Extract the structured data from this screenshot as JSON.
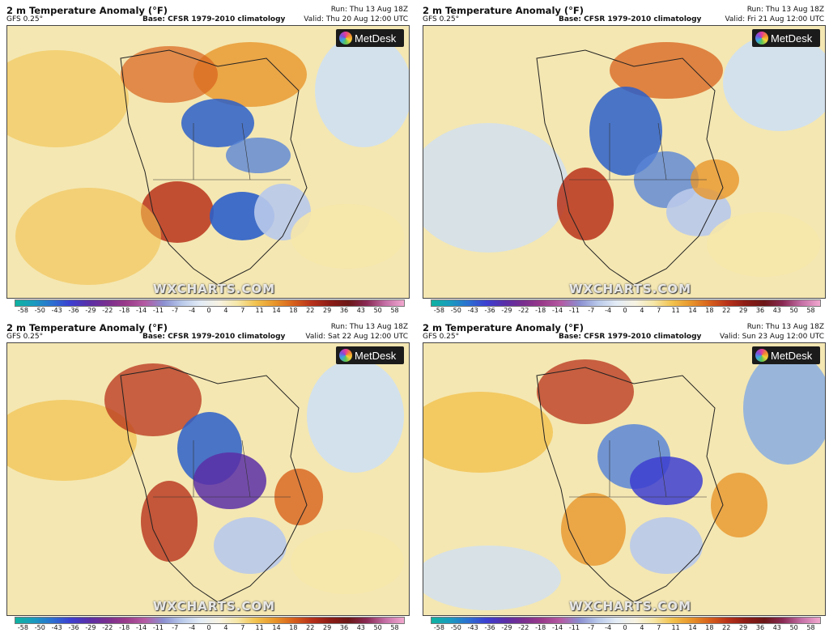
{
  "panels": [
    {
      "title": "2 m Temperature Anomaly (°F)",
      "model": "GFS 0.25°",
      "base": "Base: CFSR 1979-2010 climatology",
      "run": "Run: Thu 13 Aug 18Z",
      "valid": "Valid: Thu 20 Aug 12:00 UTC"
    },
    {
      "title": "2 m Temperature Anomaly (°F)",
      "model": "GFS 0.25°",
      "base": "Base: CFSR 1979-2010 climatology",
      "run": "Run: Thu 13 Aug 18Z",
      "valid": "Valid: Fri 21 Aug 12:00 UTC"
    },
    {
      "title": "2 m Temperature Anomaly (°F)",
      "model": "GFS 0.25°",
      "base": "Base: CFSR 1979-2010 climatology",
      "run": "Run: Thu 13 Aug 18Z",
      "valid": "Valid: Sat 22 Aug 12:00 UTC"
    },
    {
      "title": "2 m Temperature Anomaly (°F)",
      "model": "GFS 0.25°",
      "base": "Base: CFSR 1979-2010 climatology",
      "run": "Run: Thu 13 Aug 18Z",
      "valid": "Valid: Sun 23 Aug 12:00 UTC"
    }
  ],
  "logo_text": "MetDesk",
  "watermark": "WXCHARTS.COM",
  "colorbar_ticks": [
    "-58",
    "-50",
    "-43",
    "-36",
    "-29",
    "-22",
    "-18",
    "-14",
    "-11",
    "-7",
    "-4",
    "0",
    "4",
    "7",
    "11",
    "14",
    "18",
    "22",
    "29",
    "36",
    "43",
    "50",
    "58"
  ],
  "colors": {
    "cold_deep": "#3d3ed0",
    "cold": "#8fb0de",
    "neutral": "#f7f3e3",
    "warm": "#f2c24e",
    "hot": "#d8621c",
    "very_hot": "#8c1c16"
  }
}
